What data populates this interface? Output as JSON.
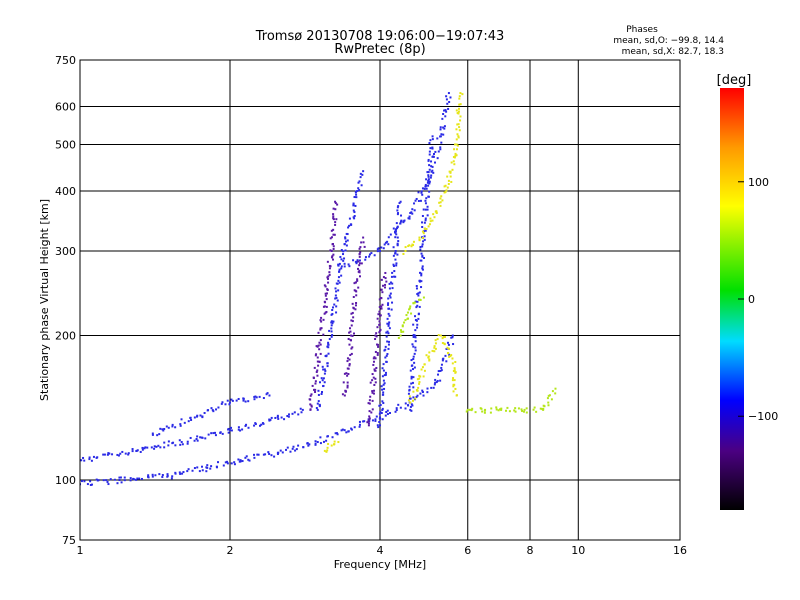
{
  "chart_data": {
    "type": "scatter",
    "title": "Tromsø 20130708 19:06:00−19:07:43",
    "subtitle": "RwPretec (8p)",
    "xlabel": "Frequency [MHz]",
    "ylabel": "Stationary phase Virtual Height [km]",
    "x_scale": "log",
    "y_scale": "log",
    "xlim": [
      1,
      16
    ],
    "ylim": [
      75,
      750
    ],
    "x_ticks": [
      "1",
      "2",
      "4",
      "6",
      "8",
      "10",
      "16"
    ],
    "y_ticks": [
      "75",
      "100",
      "200",
      "300",
      "400",
      "500",
      "600",
      "750"
    ],
    "grid": true,
    "stats": {
      "heading": "Phases",
      "line_o": "mean, sd,O: −99.8, 14.4",
      "line_x": "mean, sd,X:  82.7, 18.3"
    },
    "colorbar": {
      "label": "[deg]",
      "range": [
        -180,
        180
      ],
      "ticks": [
        "100",
        "0",
        "−100"
      ],
      "tick_values": [
        100,
        0,
        -100
      ]
    },
    "series": [
      {
        "phase": -100,
        "color": "#2a2ae6",
        "traces": [
          [
            [
              1.0,
              98
            ],
            [
              1.2,
              100
            ],
            [
              1.5,
              102
            ],
            [
              1.8,
              106
            ],
            [
              2.1,
              110
            ],
            [
              2.5,
              114
            ],
            [
              3.0,
              120
            ],
            [
              3.5,
              128
            ],
            [
              4.0,
              135
            ],
            [
              4.6,
              145
            ],
            [
              5.2,
              160
            ],
            [
              5.6,
              200
            ]
          ],
          [
            [
              1.0,
              110
            ],
            [
              1.3,
              115
            ],
            [
              1.6,
              120
            ],
            [
              2.0,
              127
            ],
            [
              2.4,
              133
            ],
            [
              2.8,
              140
            ]
          ],
          [
            [
              1.4,
              125
            ],
            [
              1.7,
              135
            ],
            [
              2.0,
              145
            ],
            [
              2.4,
              150
            ]
          ],
          [
            [
              3.0,
              140
            ],
            [
              3.1,
              170
            ],
            [
              3.2,
              210
            ],
            [
              3.3,
              260
            ],
            [
              3.4,
              310
            ],
            [
              3.5,
              340
            ],
            [
              3.6,
              400
            ],
            [
              3.7,
              440
            ]
          ],
          [
            [
              3.3,
              280
            ],
            [
              3.6,
              285
            ],
            [
              4.0,
              300
            ],
            [
              4.3,
              330
            ],
            [
              4.6,
              360
            ],
            [
              5.0,
              420
            ],
            [
              5.3,
              520
            ],
            [
              5.5,
              640
            ]
          ],
          [
            [
              4.0,
              130
            ],
            [
              4.1,
              180
            ],
            [
              4.2,
              240
            ],
            [
              4.3,
              300
            ],
            [
              4.4,
              380
            ]
          ],
          [
            [
              4.6,
              140
            ],
            [
              4.7,
              200
            ],
            [
              4.8,
              260
            ],
            [
              4.9,
              330
            ],
            [
              5.0,
              420
            ],
            [
              5.1,
              520
            ]
          ]
        ]
      },
      {
        "phase": -130,
        "color": "#5a1aa8",
        "traces": [
          [
            [
              2.9,
              140
            ],
            [
              3.0,
              180
            ],
            [
              3.1,
              230
            ],
            [
              3.2,
              300
            ],
            [
              3.25,
              380
            ]
          ],
          [
            [
              3.4,
              150
            ],
            [
              3.5,
              200
            ],
            [
              3.6,
              260
            ],
            [
              3.7,
              320
            ]
          ],
          [
            [
              3.8,
              130
            ],
            [
              3.9,
              170
            ],
            [
              4.0,
              220
            ],
            [
              4.1,
              270
            ]
          ]
        ]
      },
      {
        "phase": 100,
        "color": "#e6e61a",
        "traces": [
          [
            [
              4.5,
              300
            ],
            [
              4.8,
              320
            ],
            [
              5.2,
              360
            ],
            [
              5.5,
              420
            ],
            [
              5.7,
              500
            ],
            [
              5.8,
              640
            ]
          ],
          [
            [
              4.6,
              145
            ],
            [
              4.8,
              160
            ],
            [
              5.0,
              180
            ],
            [
              5.3,
              200
            ],
            [
              5.6,
              175
            ],
            [
              5.7,
              150
            ]
          ],
          [
            [
              3.1,
              115
            ],
            [
              3.2,
              118
            ],
            [
              3.3,
              120
            ]
          ]
        ]
      },
      {
        "phase": 75,
        "color": "#b4e61a",
        "traces": [
          [
            [
              4.4,
              200
            ],
            [
              4.6,
              230
            ],
            [
              4.9,
              240
            ]
          ],
          [
            [
              6.0,
              140
            ],
            [
              6.5,
              140
            ],
            [
              7.0,
              140
            ],
            [
              7.8,
              140
            ],
            [
              8.5,
              140
            ],
            [
              9.0,
              155
            ]
          ]
        ]
      }
    ]
  }
}
